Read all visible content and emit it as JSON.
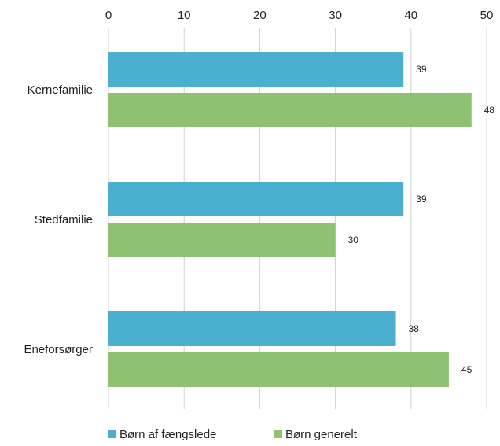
{
  "chart_data": {
    "type": "bar",
    "orientation": "horizontal",
    "categories": [
      "Kernefamilie",
      "Stedfamilie",
      "Eneforsørger"
    ],
    "series": [
      {
        "name": "Børn af fængslede",
        "values": [
          39,
          39,
          38
        ],
        "color": "#4bafd0"
      },
      {
        "name": "Børn generelt",
        "values": [
          48,
          30,
          45
        ],
        "color": "#8fc173"
      }
    ],
    "xlim": [
      0,
      50
    ],
    "xticks": [
      0,
      10,
      20,
      30,
      40,
      50
    ],
    "x_axis_position": "top",
    "grid": true,
    "legend": "bottom"
  }
}
